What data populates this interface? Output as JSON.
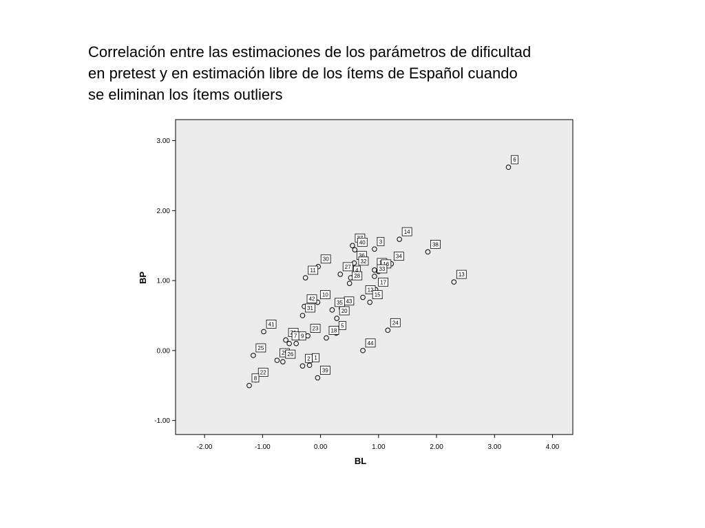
{
  "slide": {
    "title_lines": [
      "Correlación entre las estimaciones de los parámetros de dificultad",
      "en pretest y en estimación libre de los ítems de Español cuando",
      "se eliminan los ítems outliers"
    ]
  },
  "chart_data": {
    "type": "scatter",
    "xlabel": "BL",
    "ylabel": "BP",
    "xlim": [
      -2.5,
      4.35
    ],
    "ylim": [
      -1.2,
      3.3
    ],
    "x_ticks": [
      -2.0,
      -1.0,
      0.0,
      1.0,
      2.0,
      3.0,
      4.0
    ],
    "y_ticks": [
      -1.0,
      0.0,
      1.0,
      2.0,
      3.0
    ],
    "x_tick_labels": [
      "-2.00",
      "-1.00",
      "0.00",
      "1.00",
      "2.00",
      "3.00",
      "4.00"
    ],
    "y_tick_labels": [
      "-1.00",
      "0.00",
      "1.00",
      "2.00",
      "3.00"
    ],
    "grid": false,
    "legend": "none",
    "plot_background": "#ececec",
    "point_color": "#000000",
    "points": [
      {
        "label": "6",
        "x": 3.24,
        "y": 2.62
      },
      {
        "label": "14",
        "x": 1.36,
        "y": 1.59
      },
      {
        "label": "38",
        "x": 1.85,
        "y": 1.41
      },
      {
        "label": "13",
        "x": 2.3,
        "y": 0.98
      },
      {
        "label": "37",
        "x": 0.55,
        "y": 1.5
      },
      {
        "label": "40",
        "x": 0.59,
        "y": 1.44
      },
      {
        "label": "3",
        "x": 0.93,
        "y": 1.45
      },
      {
        "label": "34",
        "x": 1.22,
        "y": 1.24
      },
      {
        "label": "36",
        "x": 0.58,
        "y": 1.25
      },
      {
        "label": "32",
        "x": 0.61,
        "y": 1.17
      },
      {
        "label": "19",
        "x": 0.93,
        "y": 1.15
      },
      {
        "label": "16",
        "x": 1.0,
        "y": 1.13
      },
      {
        "label": "27",
        "x": 0.34,
        "y": 1.09
      },
      {
        "label": "4",
        "x": 0.52,
        "y": 1.04
      },
      {
        "label": "33",
        "x": 0.93,
        "y": 1.06
      },
      {
        "label": "17",
        "x": 0.95,
        "y": 0.87
      },
      {
        "label": "30",
        "x": -0.04,
        "y": 1.2
      },
      {
        "label": "11",
        "x": -0.26,
        "y": 1.04
      },
      {
        "label": "28",
        "x": 0.5,
        "y": 0.96
      },
      {
        "label": "10",
        "x": -0.05,
        "y": 0.69
      },
      {
        "label": "42",
        "x": -0.28,
        "y": 0.63
      },
      {
        "label": "43",
        "x": 0.36,
        "y": 0.6
      },
      {
        "label": "12",
        "x": 0.73,
        "y": 0.76
      },
      {
        "label": "15",
        "x": 0.85,
        "y": 0.69
      },
      {
        "label": "35",
        "x": 0.2,
        "y": 0.58
      },
      {
        "label": "20",
        "x": 0.28,
        "y": 0.46
      },
      {
        "label": "31",
        "x": -0.31,
        "y": 0.5
      },
      {
        "label": "5",
        "x": 0.27,
        "y": 0.25
      },
      {
        "label": "23",
        "x": -0.22,
        "y": 0.21
      },
      {
        "label": "18",
        "x": 0.1,
        "y": 0.18
      },
      {
        "label": "24",
        "x": 1.16,
        "y": 0.29
      },
      {
        "label": "44",
        "x": 0.73,
        "y": 0.0
      },
      {
        "label": "41",
        "x": -0.98,
        "y": 0.27
      },
      {
        "label": "21",
        "x": -0.6,
        "y": 0.15
      },
      {
        "label": "9",
        "x": -0.42,
        "y": 0.1
      },
      {
        "label": "7",
        "x": -0.54,
        "y": 0.1
      },
      {
        "label": "25",
        "x": -1.16,
        "y": -0.07
      },
      {
        "label": "29",
        "x": -0.75,
        "y": -0.14
      },
      {
        "label": "26",
        "x": -0.65,
        "y": -0.16
      },
      {
        "label": "1",
        "x": -0.19,
        "y": -0.21
      },
      {
        "label": "2",
        "x": -0.31,
        "y": -0.22
      },
      {
        "label": "39",
        "x": -0.05,
        "y": -0.39
      },
      {
        "label": "22",
        "x": -1.12,
        "y": -0.42
      },
      {
        "label": "8",
        "x": -1.23,
        "y": -0.5
      }
    ]
  }
}
